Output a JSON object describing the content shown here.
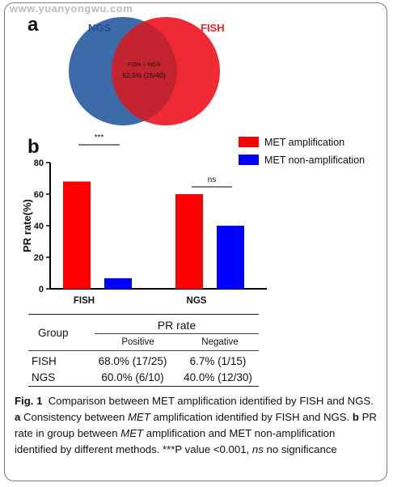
{
  "watermark": "www.yuanyongwu.com",
  "panel_a": {
    "letter": "a",
    "left_label": "NGS",
    "right_label": "FISH",
    "overlap_label": "FISH ∩ NGS",
    "overlap_value": "62.5% (25/40)",
    "colors": {
      "left": "#3d6aa8",
      "right": "#f02a35",
      "overlap": "#c4242f",
      "left_text": "#1f4e91",
      "right_text": "#f0202c"
    }
  },
  "panel_b": {
    "letter": "b"
  },
  "chart_data": {
    "type": "bar",
    "categories": [
      "FISH",
      "NGS"
    ],
    "series": [
      {
        "name": "MET amplification",
        "color": "#ff0000",
        "values": [
          68,
          60
        ]
      },
      {
        "name": "MET non-amplification",
        "color": "#0000ff",
        "values": [
          6.7,
          40
        ]
      }
    ],
    "title": "",
    "xlabel": "",
    "ylabel": "PR rate(%)",
    "ylim": [
      0,
      80
    ],
    "yticks": [
      "0",
      "20",
      "40",
      "60",
      "80"
    ],
    "annotations": [
      "***",
      "ns"
    ],
    "legend_position": "top-right",
    "grid": false
  },
  "table": {
    "group_header": "Group",
    "pr_header": "PR rate",
    "sub_headers": [
      "Positive",
      "Negative"
    ],
    "rows": [
      {
        "group": "FISH",
        "positive": "68.0% (17/25)",
        "negative": "6.7% (1/15)"
      },
      {
        "group": "NGS",
        "positive": "60.0% (6/10)",
        "negative": "40.0% (12/30)"
      }
    ]
  },
  "caption": {
    "fig": "Fig. 1",
    "t1": "Comparison between MET amplification identified by FISH and NGS.",
    "a": "a",
    "t2": "Consistency between",
    "met1": "MET",
    "t3": "amplification identified by FISH and NGS.",
    "b": "b",
    "t4": "PR rate in group between",
    "met2": "MET",
    "t5": "amplification and MET non-amplification identified by different methods. ***P value  <0.001,",
    "ns": "ns",
    "t6": "no significance"
  }
}
